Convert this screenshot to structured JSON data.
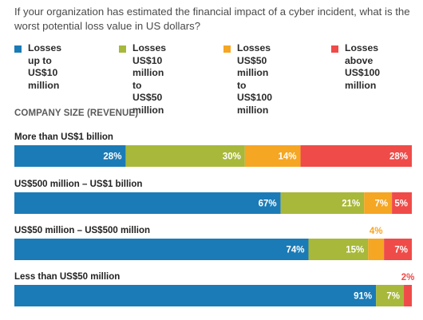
{
  "question": "If your organization has estimated the financial impact of a cyber incident, what is the worst potential loss value in US dollars?",
  "section_title": "COMPANY SIZE (REVENUE)",
  "colors": {
    "up_to_10m": "#1b7bb6",
    "m10_to_50": "#a8b83a",
    "m50_to_100": "#f5a623",
    "above_100m": "#ef4b48"
  },
  "chart_data": {
    "type": "bar",
    "orientation": "horizontal",
    "stacked": true,
    "series": [
      {
        "name": "Losses up to US$10 million",
        "key": "up_to_10m"
      },
      {
        "name": "Losses US$10 million to US$50 million",
        "key": "m10_to_50"
      },
      {
        "name": "Losses US$50 million to US$100 million",
        "key": "m50_to_100"
      },
      {
        "name": "Losses above US$100 million",
        "key": "above_100m"
      }
    ],
    "legend_labels": [
      "Losses up to\nUS$10 million",
      "Losses\nUS$10 million to\nUS$50 million",
      "Losses\nUS$50 million to\nUS$100 million",
      "Losses above\nUS$100 million"
    ],
    "categories": [
      "More than US$1 billion",
      "US$500 million – US$1 billion",
      "US$50 million – US$500 million",
      "Less than US$50 million"
    ],
    "values": [
      [
        28,
        30,
        14,
        28
      ],
      [
        67,
        21,
        7,
        5
      ],
      [
        74,
        15,
        4,
        7
      ],
      [
        91,
        7,
        0,
        2
      ]
    ],
    "data_labels": [
      [
        "28%",
        "30%",
        "14%",
        "28%"
      ],
      [
        "67%",
        "21%",
        "7%",
        "5%"
      ],
      [
        "74%",
        "15%",
        "4%",
        "7%"
      ],
      [
        "91%",
        "7%",
        "",
        "2%"
      ]
    ],
    "xlim": [
      0,
      100
    ]
  }
}
